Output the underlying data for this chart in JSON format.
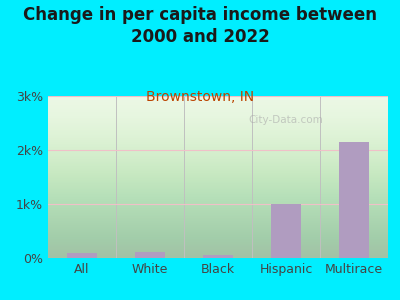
{
  "title": "Change in per capita income between\n2000 and 2022",
  "subtitle": "Brownstown, IN",
  "categories": [
    "All",
    "White",
    "Black",
    "Hispanic",
    "Multirace"
  ],
  "values": [
    100,
    110,
    60,
    1000,
    2150
  ],
  "bar_color": "#b09cc0",
  "background_outer": "#00eeff",
  "background_chart_top": "#e8f7e0",
  "background_chart_bottom": "#f5fff5",
  "title_color": "#1a1a1a",
  "subtitle_color": "#bb4400",
  "tick_label_color": "#444444",
  "ylim": [
    0,
    3000
  ],
  "yticks": [
    0,
    1000,
    2000,
    3000
  ],
  "ytick_labels": [
    "0%",
    "1k%",
    "2k%",
    "3k%"
  ],
  "grid_color": "#f0c0c8",
  "divider_color": "#c0c0c0",
  "watermark": "City-Data.com",
  "title_fontsize": 12,
  "subtitle_fontsize": 10,
  "tick_fontsize": 9
}
